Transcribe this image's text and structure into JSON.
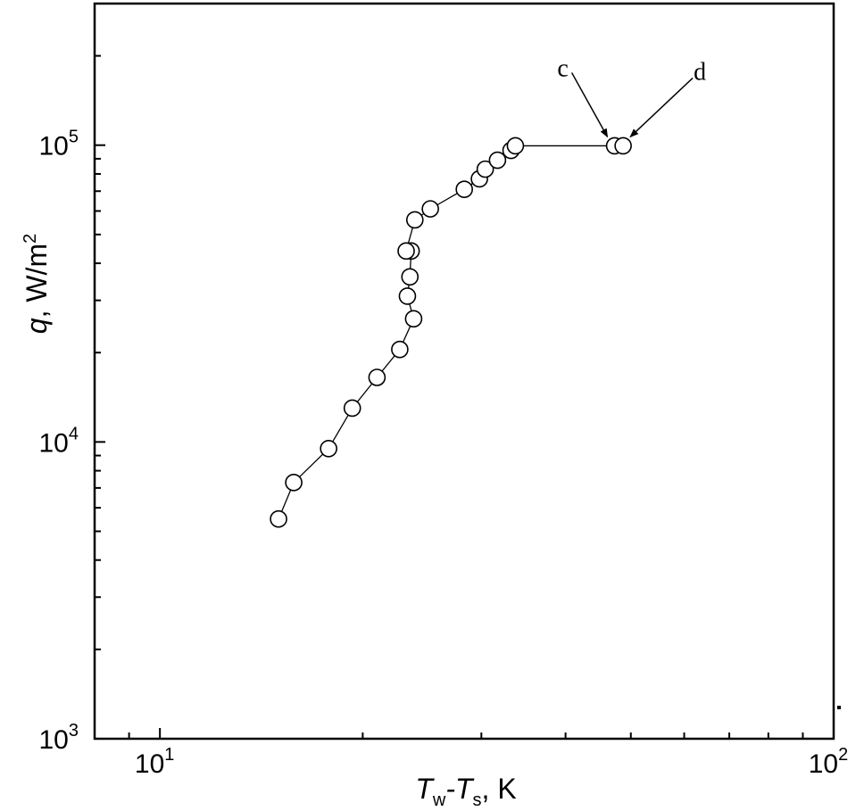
{
  "chart_data": {
    "type": "scatter",
    "xscale": "log",
    "yscale": "log",
    "xlim": [
      8,
      100
    ],
    "ylim": [
      1000,
      300000
    ],
    "x_ticks": [
      {
        "value": 10,
        "base": "10",
        "exp": "1"
      },
      {
        "value": 100,
        "base": "10",
        "exp": "2"
      }
    ],
    "y_ticks": [
      {
        "value": 1000,
        "base": "10",
        "exp": "3"
      },
      {
        "value": 10000,
        "base": "10",
        "exp": "4"
      },
      {
        "value": 100000,
        "base": "10",
        "exp": "5"
      }
    ],
    "xlabel": {
      "main": "T",
      "sub1": "w",
      "mid": "-T",
      "sub2": "s",
      "unit": ", K"
    },
    "ylabel": {
      "var": "q",
      "unit": ", W/m",
      "sup": "2"
    },
    "series": [
      {
        "marker": "open-circle",
        "connected": true,
        "x": [
          15.0,
          15.8,
          17.8,
          19.3,
          21.0,
          22.7,
          23.8,
          23.3,
          23.5,
          23.6,
          23.2,
          23.9,
          25.2,
          28.3,
          29.8,
          30.4,
          31.7,
          33.2,
          33.7,
          47.3,
          48.7
        ],
        "y": [
          5500,
          7300,
          9500,
          13000,
          16500,
          20500,
          26000,
          31000,
          36000,
          44000,
          44000,
          56000,
          61000,
          71000,
          77000,
          83000,
          89000,
          96000,
          99500,
          99500,
          99500
        ]
      }
    ],
    "annotations": [
      {
        "label": "c",
        "x": 47.3,
        "y": 99500
      },
      {
        "label": "d",
        "x": 48.7,
        "y": 99500
      }
    ]
  }
}
